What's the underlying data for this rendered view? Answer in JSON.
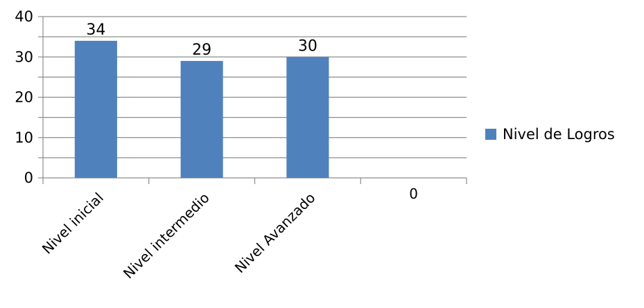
{
  "chart_data": {
    "type": "bar",
    "categories": [
      "Nivel inicial",
      "Nivel intermedio",
      "Nivel Avanzado",
      "0"
    ],
    "series": [
      {
        "name": "Nivel de Logros",
        "values": [
          34,
          29,
          30,
          null
        ],
        "color": "#4f81bd"
      }
    ],
    "data_labels": [
      "34",
      "29",
      "30",
      ""
    ],
    "ylim": [
      0,
      40
    ],
    "y_ticks": [
      0,
      10,
      20,
      30,
      40
    ],
    "y_minor_step": 5,
    "grid": true,
    "legend_position": "right",
    "title": "",
    "xlabel": "",
    "ylabel": ""
  }
}
